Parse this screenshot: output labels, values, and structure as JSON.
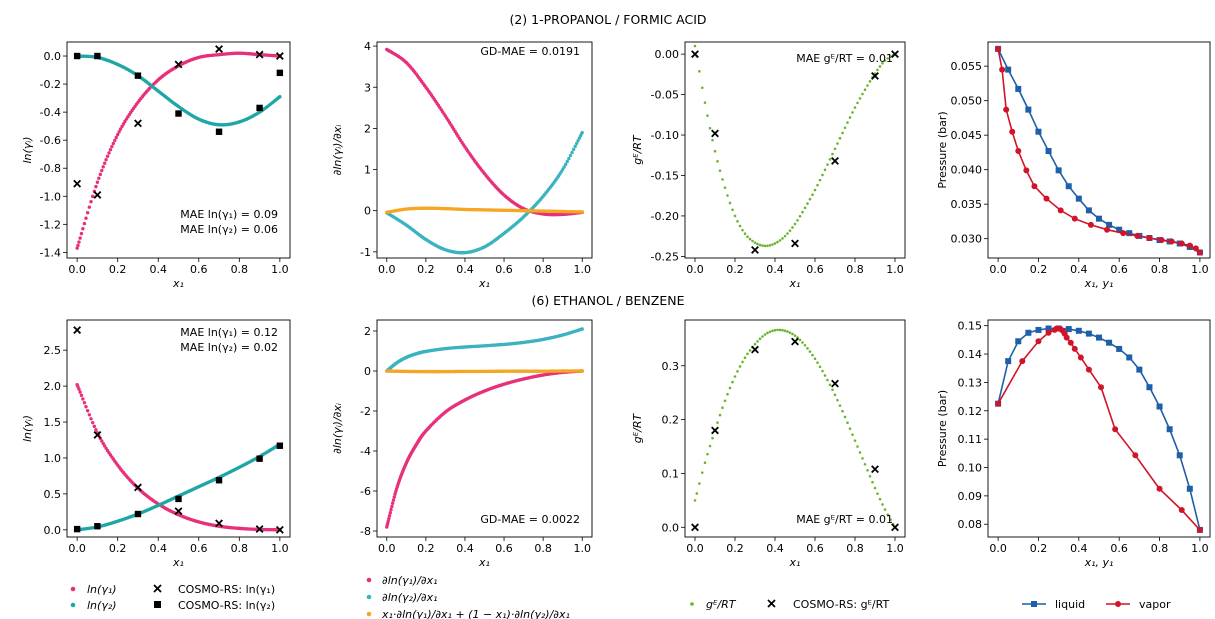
{
  "figure": {
    "row_titles": [
      "(2) 1-PROPANOL / FORMIC ACID",
      "(6) ETHANOL / BENZENE"
    ]
  },
  "colors": {
    "lny1": "#e8307a",
    "lny2": "#1fa6a6",
    "deriv1": "#e8307a",
    "deriv2": "#3bb3c0",
    "gibbs_duhem": "#f5a623",
    "ge": "#6ab42d",
    "liquid": "#1f5fa8",
    "vapor": "#d0142a",
    "marker": "#000000"
  },
  "legends": {
    "ln": [
      "ln(γ₁)",
      "ln(γ₂)",
      "COSMO-RS: ln(γ₁)",
      "COSMO-RS: ln(γ₂)"
    ],
    "deriv": [
      "∂ln(γ₁)/∂x₁",
      "∂ln(γ₂)/∂x₁",
      "x₁·∂ln(γ₁)/∂x₁ + (1 − x₁)·∂ln(γ₂)/∂x₁"
    ],
    "ge": [
      "gᴱ/RT",
      "COSMO-RS: gᴱ/RT"
    ],
    "vle": [
      "liquid",
      "vapor"
    ]
  },
  "chart_data": [
    {
      "type": "scatter",
      "title": "",
      "xlabel": "x₁",
      "ylabel": "ln(γᵢ)",
      "xlim": [
        -0.05,
        1.05
      ],
      "ylim": [
        -1.44,
        0.1
      ],
      "xticks": [
        "0.0",
        "0.2",
        "0.4",
        "0.6",
        "0.8",
        "1.0"
      ],
      "yticks": [
        "-1.4",
        "-1.2",
        "-1.0",
        "-0.8",
        "-0.6",
        "-0.4",
        "-0.2",
        "0.0"
      ],
      "series": [
        {
          "name": "ln(γ₁)",
          "x": [
            0,
            0.1,
            0.2,
            0.3,
            0.4,
            0.5,
            0.6,
            0.7,
            0.8,
            0.9,
            1.0
          ],
          "y": [
            -1.37,
            -0.9,
            -0.56,
            -0.33,
            -0.17,
            -0.07,
            -0.01,
            0.01,
            0.02,
            0.01,
            0.0
          ]
        },
        {
          "name": "ln(γ₂)",
          "x": [
            0,
            0.1,
            0.2,
            0.3,
            0.4,
            0.5,
            0.6,
            0.7,
            0.8,
            0.9,
            1.0
          ],
          "y": [
            0.0,
            -0.01,
            -0.06,
            -0.14,
            -0.25,
            -0.36,
            -0.45,
            -0.49,
            -0.47,
            -0.4,
            -0.29
          ]
        },
        {
          "name": "COSMO-RS: ln(γ₁)",
          "x": [
            0,
            0.1,
            0.3,
            0.5,
            0.7,
            0.9,
            1.0
          ],
          "y": [
            -0.91,
            -0.99,
            -0.48,
            -0.06,
            0.05,
            0.01,
            0.0
          ]
        },
        {
          "name": "COSMO-RS: ln(γ₂)",
          "x": [
            0,
            0.1,
            0.3,
            0.5,
            0.7,
            0.9,
            1.0
          ],
          "y": [
            0.0,
            0.0,
            -0.14,
            -0.41,
            -0.54,
            -0.37,
            -0.12
          ]
        }
      ],
      "annotations": [
        "MAE ln(γ₁) = 0.09",
        "MAE ln(γ₂) = 0.06"
      ]
    },
    {
      "type": "scatter",
      "title": "",
      "xlabel": "x₁",
      "ylabel": "∂ln(γᵢ)/∂xᵢ",
      "xlim": [
        -0.05,
        1.05
      ],
      "ylim": [
        -1.15,
        4.1
      ],
      "xticks": [
        "0.0",
        "0.2",
        "0.4",
        "0.6",
        "0.8",
        "1.0"
      ],
      "yticks": [
        "-1",
        "0",
        "1",
        "2",
        "3",
        "4"
      ],
      "series": [
        {
          "name": "∂ln(γ₁)/∂x₁",
          "x": [
            0,
            0.1,
            0.2,
            0.3,
            0.4,
            0.5,
            0.6,
            0.7,
            0.8,
            0.9,
            1.0
          ],
          "y": [
            3.92,
            3.6,
            3.0,
            2.3,
            1.55,
            0.9,
            0.38,
            0.05,
            -0.08,
            -0.09,
            -0.04
          ]
        },
        {
          "name": "∂ln(γ₂)/∂x₁",
          "x": [
            0,
            0.1,
            0.2,
            0.3,
            0.4,
            0.5,
            0.6,
            0.7,
            0.8,
            0.9,
            1.0
          ],
          "y": [
            -0.05,
            -0.35,
            -0.7,
            -0.95,
            -1.02,
            -0.88,
            -0.55,
            -0.15,
            0.35,
            1.0,
            1.9
          ]
        },
        {
          "name": "x₁·∂ln(γ₁)/∂x₁ + (1 − x₁)·∂ln(γ₂)/∂x₁",
          "x": [
            0,
            0.1,
            0.2,
            0.3,
            0.4,
            0.5,
            0.6,
            0.7,
            0.8,
            0.9,
            1.0
          ],
          "y": [
            -0.04,
            0.04,
            0.06,
            0.05,
            0.03,
            0.02,
            0.01,
            0.0,
            -0.01,
            -0.02,
            -0.03
          ]
        }
      ],
      "annotations": [
        "GD-MAE  = 0.0191"
      ]
    },
    {
      "type": "scatter",
      "title": "",
      "xlabel": "x₁",
      "ylabel": "gᴱ/RT",
      "xlim": [
        -0.05,
        1.05
      ],
      "ylim": [
        -0.252,
        0.015
      ],
      "xticks": [
        "0.0",
        "0.2",
        "0.4",
        "0.6",
        "0.8",
        "1.0"
      ],
      "yticks": [
        "-0.25",
        "-0.20",
        "-0.15",
        "-0.10",
        "-0.05",
        "0.00"
      ],
      "series": [
        {
          "name": "gᴱ/RT",
          "x": [
            0,
            0.05,
            0.1,
            0.15,
            0.2,
            0.25,
            0.3,
            0.35,
            0.4,
            0.45,
            0.5,
            0.55,
            0.6,
            0.65,
            0.7,
            0.75,
            0.8,
            0.85,
            0.9,
            0.95,
            1.0
          ],
          "y": [
            0.01,
            -0.06,
            -0.12,
            -0.165,
            -0.2,
            -0.222,
            -0.233,
            -0.237,
            -0.234,
            -0.225,
            -0.21,
            -0.19,
            -0.168,
            -0.143,
            -0.117,
            -0.091,
            -0.066,
            -0.044,
            -0.024,
            -0.008,
            0.0
          ]
        },
        {
          "name": "COSMO-RS: gᴱ/RT",
          "x": [
            0,
            0.1,
            0.3,
            0.5,
            0.7,
            0.9,
            1.0
          ],
          "y": [
            0.0,
            -0.098,
            -0.242,
            -0.234,
            -0.132,
            -0.027,
            0.0
          ]
        }
      ],
      "annotations": [
        "MAE gᴱ/RT = 0.01"
      ]
    },
    {
      "type": "line",
      "title": "",
      "xlabel": "x₁, y₁",
      "ylabel": "Pressure (bar)",
      "xlim": [
        -0.05,
        1.05
      ],
      "ylim": [
        0.0272,
        0.0585
      ],
      "xticks": [
        "0.0",
        "0.2",
        "0.4",
        "0.6",
        "0.8",
        "1.0"
      ],
      "yticks": [
        "0.030",
        "0.035",
        "0.040",
        "0.045",
        "0.050",
        "0.055"
      ],
      "series": [
        {
          "name": "liquid",
          "x": [
            0.0,
            0.05,
            0.1,
            0.15,
            0.2,
            0.25,
            0.3,
            0.35,
            0.4,
            0.45,
            0.5,
            0.55,
            0.6,
            0.65,
            0.7,
            0.75,
            0.8,
            0.85,
            0.9,
            0.95,
            1.0
          ],
          "y": [
            0.0575,
            0.0545,
            0.0517,
            0.0487,
            0.0455,
            0.0427,
            0.0399,
            0.0376,
            0.0358,
            0.0341,
            0.0329,
            0.032,
            0.0313,
            0.0308,
            0.0304,
            0.0301,
            0.0298,
            0.0296,
            0.0293,
            0.0288,
            0.028
          ]
        },
        {
          "name": "vapor",
          "x": [
            0.0,
            0.02,
            0.04,
            0.07,
            0.1,
            0.14,
            0.18,
            0.24,
            0.31,
            0.38,
            0.46,
            0.54,
            0.62,
            0.69,
            0.75,
            0.81,
            0.86,
            0.91,
            0.95,
            0.98,
            1.0
          ],
          "y": [
            0.0575,
            0.0545,
            0.0487,
            0.0455,
            0.0427,
            0.0399,
            0.0376,
            0.0358,
            0.0341,
            0.0329,
            0.032,
            0.0313,
            0.0308,
            0.0304,
            0.0301,
            0.0298,
            0.0296,
            0.0293,
            0.029,
            0.0286,
            0.028
          ]
        }
      ]
    },
    {
      "type": "scatter",
      "title": "",
      "xlabel": "x₁",
      "ylabel": "ln(γᵢ)",
      "xlim": [
        -0.05,
        1.05
      ],
      "ylim": [
        -0.1,
        2.92
      ],
      "xticks": [
        "0.0",
        "0.2",
        "0.4",
        "0.6",
        "0.8",
        "1.0"
      ],
      "yticks": [
        "0.0",
        "0.5",
        "1.0",
        "1.5",
        "2.0",
        "2.5"
      ],
      "series": [
        {
          "name": "ln(γ₁)",
          "x": [
            0,
            0.1,
            0.2,
            0.3,
            0.4,
            0.5,
            0.6,
            0.7,
            0.8,
            0.9,
            1.0
          ],
          "y": [
            2.02,
            1.35,
            0.9,
            0.58,
            0.36,
            0.21,
            0.11,
            0.05,
            0.02,
            0.005,
            0.0
          ]
        },
        {
          "name": "ln(γ₂)",
          "x": [
            0,
            0.1,
            0.2,
            0.3,
            0.4,
            0.5,
            0.6,
            0.7,
            0.8,
            0.9,
            1.0
          ],
          "y": [
            0.0,
            0.04,
            0.12,
            0.22,
            0.34,
            0.47,
            0.6,
            0.73,
            0.87,
            1.02,
            1.19
          ]
        },
        {
          "name": "COSMO-RS: ln(γ₁)",
          "x": [
            0,
            0.1,
            0.3,
            0.5,
            0.7,
            0.9,
            1.0
          ],
          "y": [
            2.78,
            1.32,
            0.59,
            0.26,
            0.09,
            0.01,
            0.0
          ]
        },
        {
          "name": "COSMO-RS: ln(γ₂)",
          "x": [
            0,
            0.1,
            0.3,
            0.5,
            0.7,
            0.9,
            1.0
          ],
          "y": [
            0.01,
            0.05,
            0.22,
            0.43,
            0.69,
            0.99,
            1.17
          ]
        }
      ],
      "annotations": [
        "MAE ln(γ₁) = 0.12",
        "MAE ln(γ₂) = 0.02"
      ]
    },
    {
      "type": "scatter",
      "title": "",
      "xlabel": "x₁",
      "ylabel": "∂ln(γᵢ)/∂xᵢ",
      "xlim": [
        -0.05,
        1.05
      ],
      "ylim": [
        -8.3,
        2.55
      ],
      "xticks": [
        "0.0",
        "0.2",
        "0.4",
        "0.6",
        "0.8",
        "1.0"
      ],
      "yticks": [
        "-8",
        "-6",
        "-4",
        "-2",
        "0",
        "2"
      ],
      "series": [
        {
          "name": "∂ln(γ₁)/∂x₁",
          "x": [
            0,
            0.05,
            0.1,
            0.15,
            0.2,
            0.3,
            0.4,
            0.5,
            0.6,
            0.7,
            0.8,
            0.9,
            1.0
          ],
          "y": [
            -7.8,
            -5.9,
            -4.6,
            -3.7,
            -3.0,
            -2.05,
            -1.45,
            -1.0,
            -0.66,
            -0.4,
            -0.2,
            -0.07,
            0.0
          ]
        },
        {
          "name": "∂ln(γ₂)/∂x₁",
          "x": [
            0,
            0.05,
            0.1,
            0.15,
            0.2,
            0.3,
            0.4,
            0.5,
            0.6,
            0.7,
            0.8,
            0.9,
            1.0
          ],
          "y": [
            0.0,
            0.4,
            0.68,
            0.86,
            0.98,
            1.12,
            1.2,
            1.26,
            1.33,
            1.43,
            1.58,
            1.8,
            2.1
          ]
        },
        {
          "name": "x₁·∂ln(γ₁)/∂x₁ + (1 − x₁)·∂ln(γ₂)/∂x₁",
          "x": [
            0,
            0.1,
            0.2,
            0.3,
            0.4,
            0.5,
            0.6,
            0.7,
            0.8,
            0.9,
            1.0
          ],
          "y": [
            0.0,
            -0.02,
            -0.03,
            -0.03,
            -0.02,
            -0.02,
            -0.01,
            -0.01,
            -0.01,
            0.0,
            0.0
          ]
        }
      ],
      "annotations": [
        "GD-MAE  = 0.0022"
      ]
    },
    {
      "type": "scatter",
      "title": "",
      "xlabel": "x₁",
      "ylabel": "gᴱ/RT",
      "xlim": [
        -0.05,
        1.05
      ],
      "ylim": [
        -0.018,
        0.385
      ],
      "xticks": [
        "0.0",
        "0.2",
        "0.4",
        "0.6",
        "0.8",
        "1.0"
      ],
      "yticks": [
        "0.0",
        "0.1",
        "0.2",
        "0.3"
      ],
      "series": [
        {
          "name": "gᴱ/RT",
          "x": [
            0,
            0.05,
            0.1,
            0.15,
            0.2,
            0.25,
            0.3,
            0.35,
            0.4,
            0.45,
            0.5,
            0.55,
            0.6,
            0.65,
            0.7,
            0.75,
            0.8,
            0.85,
            0.9,
            0.95,
            1.0
          ],
          "y": [
            0.05,
            0.12,
            0.18,
            0.235,
            0.28,
            0.315,
            0.34,
            0.358,
            0.366,
            0.365,
            0.356,
            0.338,
            0.313,
            0.282,
            0.246,
            0.205,
            0.161,
            0.117,
            0.073,
            0.033,
            0.0
          ]
        },
        {
          "name": "COSMO-RS: gᴱ/RT",
          "x": [
            0,
            0.1,
            0.3,
            0.5,
            0.7,
            0.9,
            1.0
          ],
          "y": [
            0.0,
            0.18,
            0.33,
            0.345,
            0.267,
            0.108,
            0.0
          ]
        }
      ],
      "annotations": [
        "MAE gᴱ/RT = 0.01"
      ]
    },
    {
      "type": "line",
      "title": "",
      "xlabel": "x₁, y₁",
      "ylabel": "Pressure (bar)",
      "xlim": [
        -0.05,
        1.05
      ],
      "ylim": [
        0.0755,
        0.152
      ],
      "xticks": [
        "0.0",
        "0.2",
        "0.4",
        "0.6",
        "0.8",
        "1.0"
      ],
      "yticks": [
        "0.08",
        "0.09",
        "0.10",
        "0.11",
        "0.12",
        "0.13",
        "0.14",
        "0.15"
      ],
      "series": [
        {
          "name": "liquid",
          "x": [
            0.0,
            0.05,
            0.1,
            0.15,
            0.2,
            0.25,
            0.3,
            0.35,
            0.4,
            0.45,
            0.5,
            0.55,
            0.6,
            0.65,
            0.7,
            0.75,
            0.8,
            0.85,
            0.9,
            0.95,
            1.0
          ],
          "y": [
            0.1225,
            0.1375,
            0.1445,
            0.1475,
            0.1485,
            0.149,
            0.149,
            0.1488,
            0.1482,
            0.1472,
            0.1458,
            0.144,
            0.1418,
            0.1388,
            0.1345,
            0.1283,
            0.1215,
            0.1135,
            0.1043,
            0.0925,
            0.078
          ]
        },
        {
          "name": "vapor",
          "x": [
            0.0,
            0.12,
            0.2,
            0.25,
            0.28,
            0.29,
            0.3,
            0.31,
            0.32,
            0.33,
            0.34,
            0.36,
            0.38,
            0.41,
            0.45,
            0.51,
            0.58,
            0.68,
            0.8,
            0.91,
            1.0
          ],
          "y": [
            0.1225,
            0.1375,
            0.1445,
            0.1475,
            0.1485,
            0.149,
            0.149,
            0.1488,
            0.1482,
            0.1472,
            0.1458,
            0.144,
            0.1418,
            0.1388,
            0.1345,
            0.1283,
            0.1135,
            0.1043,
            0.0925,
            0.085,
            0.078
          ]
        }
      ]
    }
  ]
}
